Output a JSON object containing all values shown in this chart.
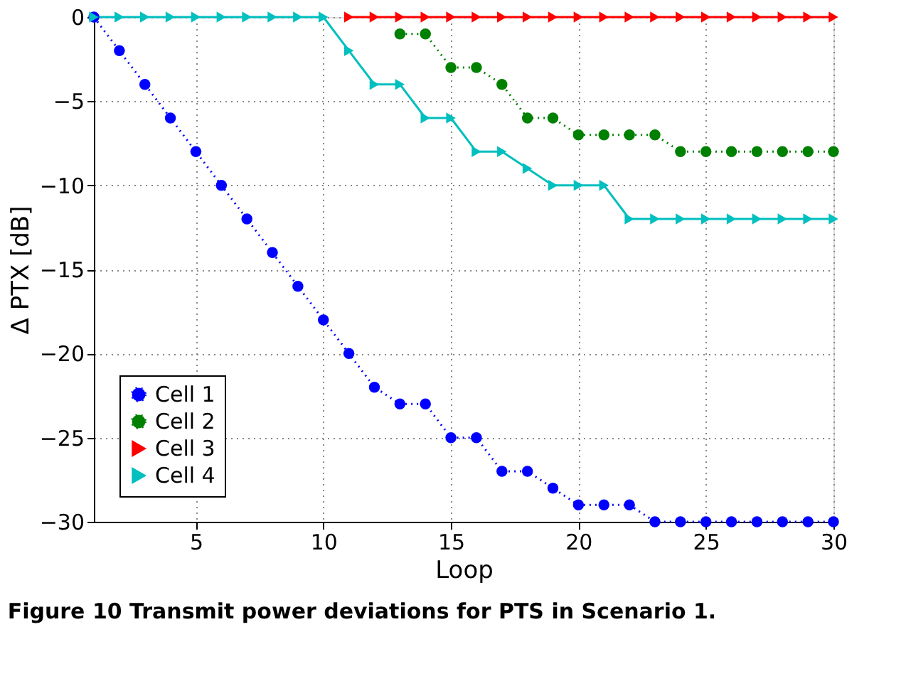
{
  "chart_data": {
    "type": "line",
    "xlabel": "Loop",
    "ylabel": "Δ PTX [dB]",
    "x": [
      1,
      2,
      3,
      4,
      5,
      6,
      7,
      8,
      9,
      10,
      11,
      12,
      13,
      14,
      15,
      16,
      17,
      18,
      19,
      20,
      21,
      22,
      23,
      24,
      25,
      26,
      27,
      28,
      29,
      30
    ],
    "xlim": [
      1,
      30
    ],
    "xticks": [
      5,
      10,
      15,
      20,
      25,
      30
    ],
    "ylim": [
      -30,
      0
    ],
    "yticks": [
      -30,
      -25,
      -20,
      -15,
      -10,
      -5,
      0
    ],
    "grid": true,
    "legend": "bottom left",
    "series": [
      {
        "name": "Cell 1",
        "color": "#0000ff",
        "marker": "circle",
        "line_style": "dotted",
        "values": [
          0,
          -2,
          -4,
          -6,
          -8,
          -10,
          -12,
          -14,
          -16,
          -18,
          -20,
          -22,
          -23,
          -23,
          -25,
          -25,
          -27,
          -27,
          -28,
          -29,
          -29,
          -29,
          -30,
          -30,
          -30,
          -30,
          -30,
          -30,
          -30,
          -30
        ]
      },
      {
        "name": "Cell 2",
        "color": "#008000",
        "marker": "circle",
        "line_style": "dotted",
        "values": [
          null,
          null,
          null,
          null,
          null,
          null,
          null,
          null,
          null,
          null,
          null,
          null,
          -1,
          -1,
          -3,
          -3,
          -4,
          -6,
          -6,
          -7,
          -7,
          -7,
          -7,
          -8,
          -8,
          -8,
          -8,
          -8,
          -8,
          -8
        ]
      },
      {
        "name": "Cell 3",
        "color": "#ff0000",
        "marker": "triangle",
        "line_style": "solid",
        "values": [
          null,
          null,
          null,
          null,
          null,
          null,
          null,
          null,
          null,
          null,
          0,
          0,
          0,
          0,
          0,
          0,
          0,
          0,
          0,
          0,
          0,
          0,
          0,
          0,
          0,
          0,
          0,
          0,
          0,
          0
        ]
      },
      {
        "name": "Cell 4",
        "color": "#00bfbf",
        "marker": "triangle",
        "line_style": "solid",
        "values": [
          0,
          0,
          0,
          0,
          0,
          0,
          0,
          0,
          0,
          0,
          -2,
          -4,
          -4,
          -6,
          -6,
          -8,
          -8,
          -9,
          -10,
          -10,
          -10,
          -12,
          -12,
          -12,
          -12,
          -12,
          -12,
          -12,
          -12,
          -12
        ]
      }
    ],
    "annotations": [
      "Figure 10 Transmit power deviations for PTS in Scenario 1."
    ]
  }
}
